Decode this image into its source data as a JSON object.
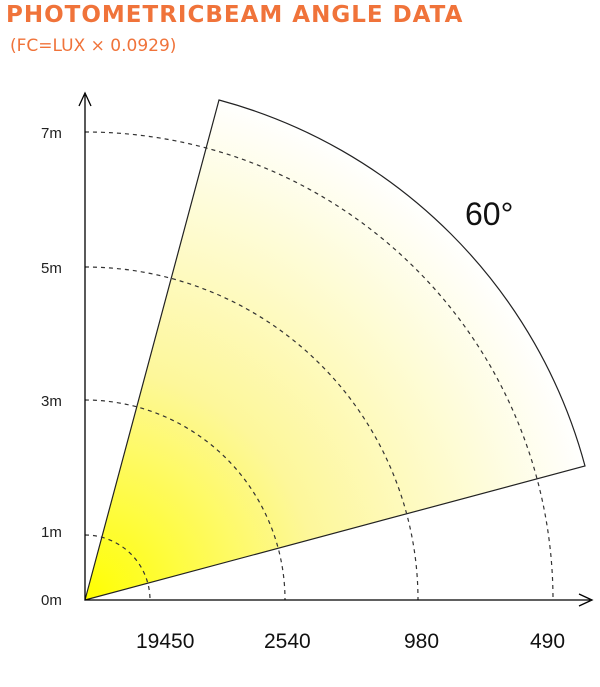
{
  "header": {
    "title": "PHOTOMETRICBEAM ANGLE DATA",
    "subtitle": "(FC=LUX × 0.0929)"
  },
  "diagram": {
    "beam_angle": "60°",
    "distance_labels": [
      "0m",
      "1m",
      "3m",
      "5m",
      "7m"
    ],
    "lux_values": [
      "19450",
      "2540",
      "980",
      "490"
    ],
    "colors": {
      "beam_bright": "#ffff00",
      "beam_light": "#ffffff",
      "axis": "#000000",
      "dashed": "#333333",
      "title": "#f0733a"
    }
  }
}
